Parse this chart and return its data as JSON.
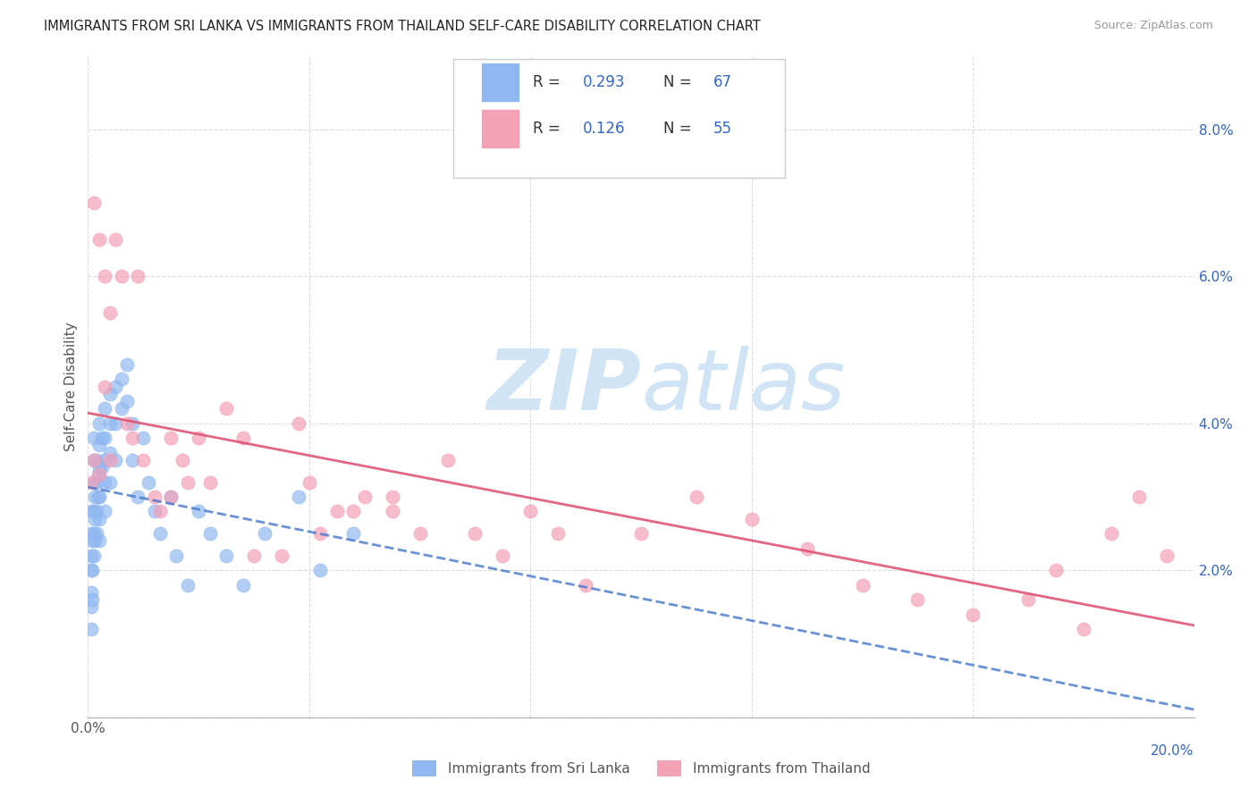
{
  "title": "IMMIGRANTS FROM SRI LANKA VS IMMIGRANTS FROM THAILAND SELF-CARE DISABILITY CORRELATION CHART",
  "source": "Source: ZipAtlas.com",
  "ylabel": "Self-Care Disability",
  "xlim": [
    0.0,
    0.2
  ],
  "ylim": [
    0.0,
    0.09
  ],
  "sri_lanka_R": 0.293,
  "sri_lanka_N": 67,
  "thailand_R": 0.126,
  "thailand_N": 55,
  "sri_lanka_color": "#90b8f0",
  "thailand_color": "#f4a0b5",
  "sri_lanka_line_color": "#4477cc",
  "thailand_line_color": "#e05575",
  "legend_text_color": "#3366cc",
  "background_color": "#ffffff",
  "watermark_color": "#d0e4f5",
  "sri_lanka_x": [
    0.0005,
    0.0005,
    0.0005,
    0.0005,
    0.0005,
    0.0005,
    0.0008,
    0.0008,
    0.0008,
    0.0008,
    0.001,
    0.001,
    0.001,
    0.001,
    0.001,
    0.001,
    0.0012,
    0.0012,
    0.0012,
    0.0015,
    0.0015,
    0.0015,
    0.0015,
    0.0018,
    0.0018,
    0.002,
    0.002,
    0.002,
    0.002,
    0.002,
    0.002,
    0.0025,
    0.0025,
    0.003,
    0.003,
    0.003,
    0.003,
    0.003,
    0.004,
    0.004,
    0.004,
    0.004,
    0.005,
    0.005,
    0.005,
    0.006,
    0.006,
    0.007,
    0.007,
    0.008,
    0.008,
    0.009,
    0.01,
    0.011,
    0.012,
    0.013,
    0.015,
    0.016,
    0.018,
    0.02,
    0.022,
    0.025,
    0.028,
    0.032,
    0.038,
    0.042,
    0.048
  ],
  "sri_lanka_y": [
    0.025,
    0.022,
    0.02,
    0.017,
    0.015,
    0.012,
    0.028,
    0.024,
    0.02,
    0.016,
    0.038,
    0.035,
    0.032,
    0.028,
    0.025,
    0.022,
    0.03,
    0.027,
    0.024,
    0.035,
    0.032,
    0.028,
    0.025,
    0.033,
    0.03,
    0.04,
    0.037,
    0.034,
    0.03,
    0.027,
    0.024,
    0.038,
    0.034,
    0.042,
    0.038,
    0.035,
    0.032,
    0.028,
    0.044,
    0.04,
    0.036,
    0.032,
    0.045,
    0.04,
    0.035,
    0.046,
    0.042,
    0.048,
    0.043,
    0.04,
    0.035,
    0.03,
    0.038,
    0.032,
    0.028,
    0.025,
    0.03,
    0.022,
    0.018,
    0.028,
    0.025,
    0.022,
    0.018,
    0.025,
    0.03,
    0.02,
    0.025
  ],
  "thailand_x": [
    0.0005,
    0.001,
    0.001,
    0.002,
    0.002,
    0.003,
    0.003,
    0.004,
    0.004,
    0.005,
    0.006,
    0.007,
    0.008,
    0.009,
    0.01,
    0.012,
    0.013,
    0.015,
    0.015,
    0.017,
    0.018,
    0.02,
    0.022,
    0.025,
    0.028,
    0.03,
    0.035,
    0.038,
    0.04,
    0.045,
    0.05,
    0.055,
    0.06,
    0.065,
    0.07,
    0.075,
    0.08,
    0.085,
    0.09,
    0.1,
    0.11,
    0.12,
    0.13,
    0.14,
    0.15,
    0.16,
    0.17,
    0.175,
    0.18,
    0.185,
    0.19,
    0.195,
    0.055,
    0.048,
    0.042
  ],
  "thailand_y": [
    0.032,
    0.07,
    0.035,
    0.065,
    0.033,
    0.06,
    0.045,
    0.055,
    0.035,
    0.065,
    0.06,
    0.04,
    0.038,
    0.06,
    0.035,
    0.03,
    0.028,
    0.038,
    0.03,
    0.035,
    0.032,
    0.038,
    0.032,
    0.042,
    0.038,
    0.022,
    0.022,
    0.04,
    0.032,
    0.028,
    0.03,
    0.028,
    0.025,
    0.035,
    0.025,
    0.022,
    0.028,
    0.025,
    0.018,
    0.025,
    0.03,
    0.027,
    0.023,
    0.018,
    0.016,
    0.014,
    0.016,
    0.02,
    0.012,
    0.025,
    0.03,
    0.022,
    0.03,
    0.028,
    0.025
  ]
}
